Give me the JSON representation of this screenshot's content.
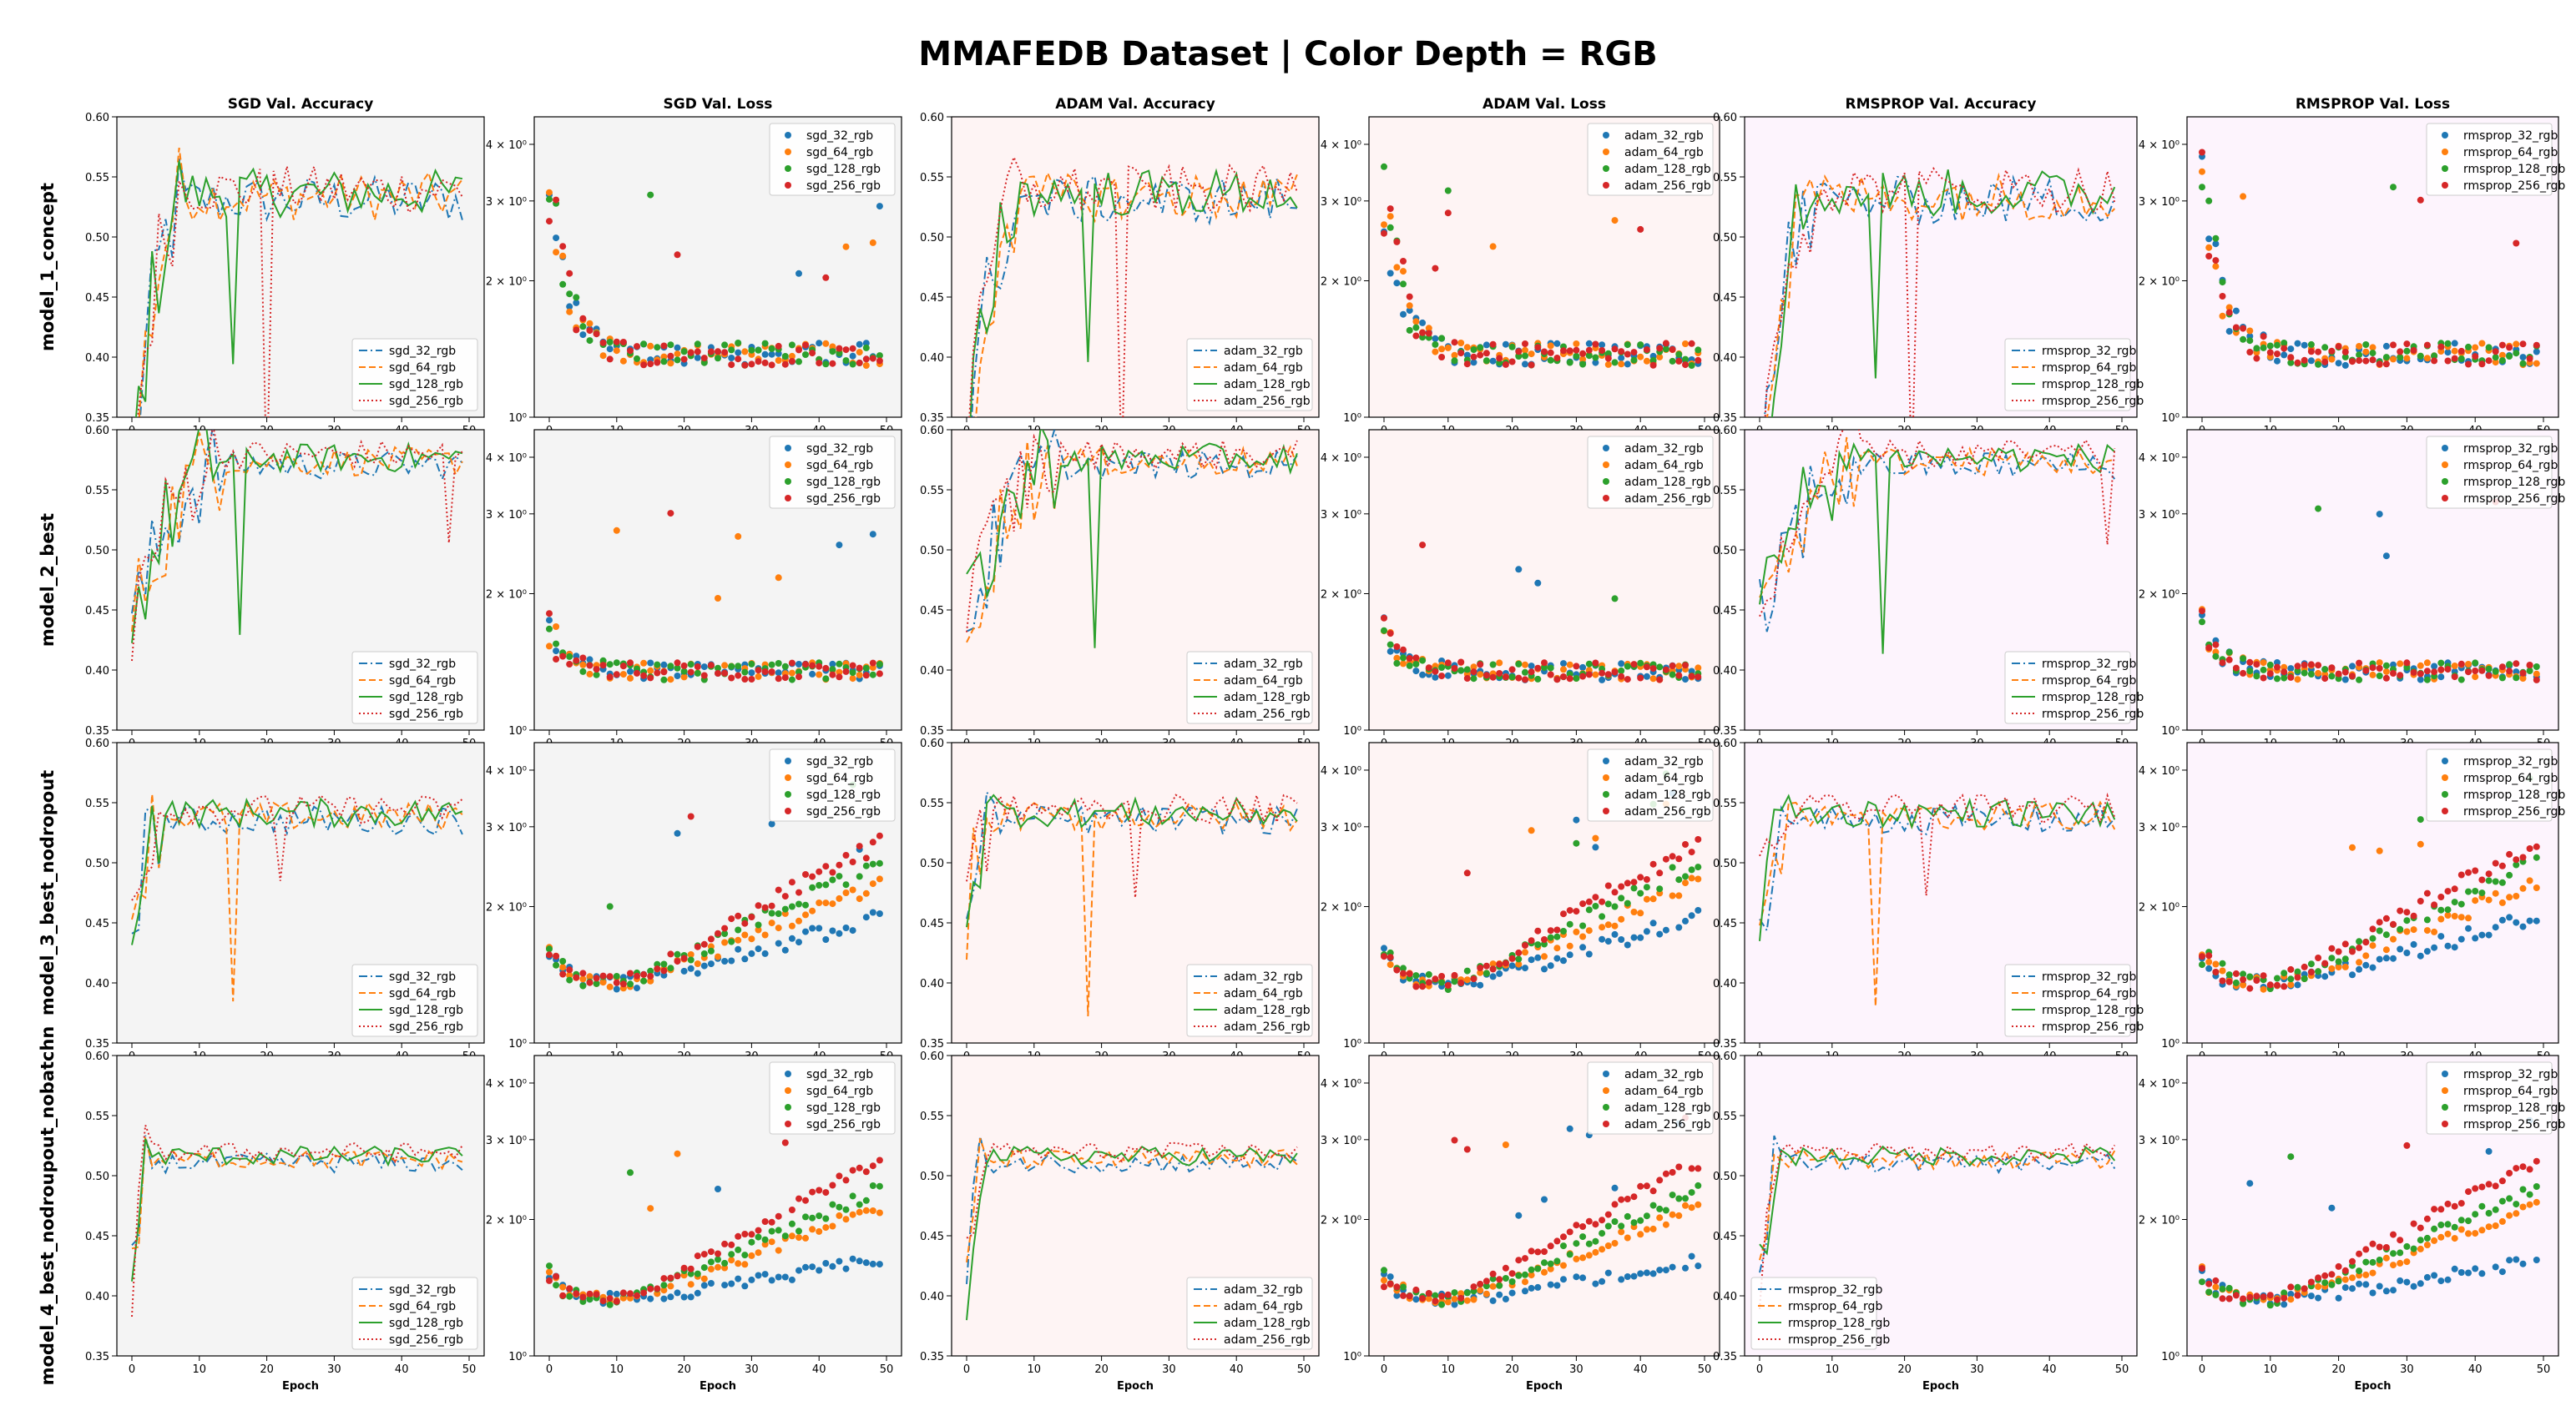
{
  "figure_title": "MMAFEDB Dataset | Color Depth = RGB",
  "row_labels": [
    "model_1_concept",
    "model_2_best",
    "model_3_best_nodropout",
    "model_4_best_nodroupout_nobatchn"
  ],
  "colors": {
    "series_32": "#1f77b4",
    "series_64": "#ff7f0e",
    "series_128": "#2ca02c",
    "series_256": "#d62728",
    "bg_sgd": "#f4f4f4",
    "bg_adam": "#fef4f4",
    "bg_rmsprop": "#fdf4fd"
  },
  "chart_data": {
    "type": "line",
    "grid": false,
    "xlabel": "Epoch",
    "x": "epochs 0-49",
    "x_ticks": [
      "0",
      "10",
      "20",
      "30",
      "40",
      "50"
    ],
    "accuracy_axis": {
      "ylim": [
        0.35,
        0.6
      ],
      "ticks": [
        "0.35",
        "0.40",
        "0.45",
        "0.50",
        "0.55",
        "0.60"
      ]
    },
    "loss_axis": {
      "scale": "log",
      "ylim": [
        1.0,
        4.6
      ],
      "ticks": [
        "10⁰",
        "2 × 10⁰",
        "3 × 10⁰",
        "4 × 10⁰"
      ]
    },
    "legend_placement": "accuracy: lower-right (model_4 rmsprop: lower-left); loss: upper-right",
    "optimizers": [
      {
        "key": "sgd",
        "accuracy_title": "SGD Val. Accuracy",
        "loss_title": "SGD Val. Loss",
        "series_names": [
          "sgd_32_rgb",
          "sgd_64_rgb",
          "sgd_128_rgb",
          "sgd_256_rgb"
        ]
      },
      {
        "key": "adam",
        "accuracy_title": "ADAM Val. Accuracy",
        "loss_title": "ADAM Val. Loss",
        "series_names": [
          "adam_32_rgb",
          "adam_64_rgb",
          "adam_128_rgb",
          "adam_256_rgb"
        ]
      },
      {
        "key": "rmsprop",
        "accuracy_title": "RMSPROP Val. Accuracy",
        "loss_title": "RMSPROP Val. Loss",
        "series_names": [
          "rmsprop_32_rgb",
          "rmsprop_64_rgb",
          "rmsprop_128_rgb",
          "rmsprop_256_rgb"
        ]
      }
    ],
    "series_styles": [
      "dashdot",
      "dashed",
      "solid",
      "dotted"
    ],
    "trend_profiles": {
      "accuracy": {
        "model_1_concept": {
          "start": 0.3,
          "plateau": 0.535,
          "rise_epochs": 8,
          "spread": 0.02,
          "dips": [
            [
              15,
              2,
              0.39
            ],
            [
              20,
              3,
              0.3
            ]
          ]
        },
        "model_2_best": {
          "start": 0.44,
          "plateau": 0.575,
          "rise_epochs": 14,
          "spread": 0.012,
          "dips": [
            [
              16,
              2,
              0.42
            ],
            [
              47,
              3,
              0.5
            ]
          ]
        },
        "model_3_best_nodropout": {
          "start": 0.46,
          "plateau": 0.54,
          "rise_epochs": 5,
          "spread": 0.012,
          "dips": [
            [
              22,
              3,
              0.48
            ],
            [
              15,
              1,
              0.38
            ]
          ]
        },
        "model_4_best_nodroupout_nobatchn": {
          "start": 0.41,
          "plateau": 0.515,
          "rise_epochs": 3,
          "spread": 0.008,
          "dips": []
        }
      },
      "loss": {
        "model_1_concept": {
          "start": 3.2,
          "floor": 1.38,
          "growth": 0.0,
          "spread": 0.08
        },
        "model_2_best": {
          "start": 1.7,
          "floor": 1.35,
          "growth": 0.0,
          "spread": 0.06
        },
        "model_3_best_nodropout": {
          "start": 1.6,
          "floor": 1.35,
          "growth": [
            0.55,
            0.9,
            1.15,
            1.4
          ],
          "spread": 0.05
        },
        "model_4_best_nodroupout_nobatchn": {
          "start": 1.5,
          "floor": 1.33,
          "growth": [
            0.3,
            0.8,
            1.0,
            1.35
          ],
          "spread": 0.04
        }
      }
    },
    "note_values": "series values are approximated from the figure's visible trends per panel"
  }
}
